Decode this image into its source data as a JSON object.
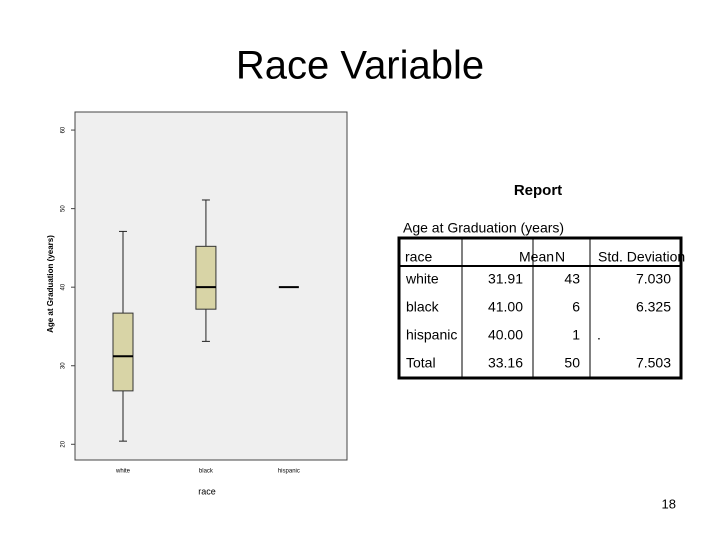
{
  "title": "Race Variable",
  "chart_data": {
    "type": "boxplot",
    "x_label": "race",
    "y_label": "Age at Graduation (years)",
    "categories": [
      "white",
      "black",
      "hispanic"
    ],
    "boxes": [
      {
        "min": 20.4,
        "q1": 26.8,
        "median": 31.2,
        "q3": 36.7,
        "max": 47.1
      },
      {
        "min": 33.1,
        "q1": 37.2,
        "median": 40,
        "q3": 45.2,
        "max": 51.1
      },
      {
        "min": null,
        "q1": null,
        "median": 40,
        "q3": null,
        "max": null
      }
    ],
    "color": "#d8d4a6",
    "ylim": [
      18,
      62.3
    ],
    "yticks": [
      20,
      30,
      40,
      50,
      60
    ]
  },
  "table": {
    "title": "Report",
    "subtitle": "Age at Graduation (years)",
    "columns": [
      "race",
      "Mean",
      "N",
      "Std. Deviation"
    ],
    "rows": [
      [
        "white",
        "31.91",
        "43",
        "7.030"
      ],
      [
        "black",
        "41.00",
        "6",
        "6.325"
      ],
      [
        "hispanic",
        "40.00",
        "1",
        "."
      ],
      [
        "Total",
        "33.16",
        "50",
        "7.503"
      ]
    ]
  },
  "page_number": "18"
}
